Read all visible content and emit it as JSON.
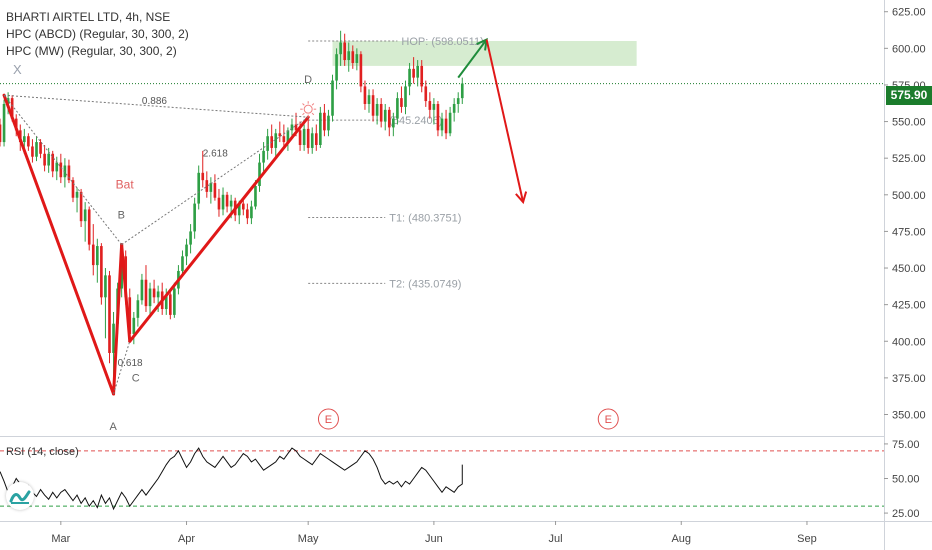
{
  "header": {
    "symbol_line": "BHARTI AIRTEL LTD, 4h, NSE",
    "indicator_1": "HPC (ABCD) (Regular, 30, 300, 2)",
    "indicator_2": "HPC (MW) (Regular, 30, 300, 2)",
    "hide_glyph": "X"
  },
  "colors": {
    "up": "#26a69a",
    "down": "#ef5350",
    "candle_up": "#2e9f45",
    "candle_down": "#e02020",
    "pattern": "#e01818",
    "dotted": "#777777",
    "target_zone": "#cfe9c8",
    "price_line": "#1b7c2c",
    "rsi_line": "#111111"
  },
  "price_tag": "575.90",
  "chart_data": [
    {
      "type": "candlestick",
      "title": "BHARTI AIRTEL LTD, 4h, NSE",
      "y_axis": {
        "ticks": [
          625,
          600,
          575,
          550,
          525,
          500,
          475,
          450,
          425,
          400,
          375,
          350
        ],
        "tick_labels": [
          "625.00",
          "600.00",
          "575.00",
          "550.00",
          "525.00",
          "500.00",
          "475.00",
          "450.00",
          "425.00",
          "400.00",
          "375.00",
          "350.00"
        ],
        "range": [
          336,
          633
        ]
      },
      "x_axis": {
        "ticks": [
          "Mar",
          "Apr",
          "May",
          "Jun",
          "Jul",
          "Aug",
          "Sep"
        ],
        "range": [
          "2020-02-15",
          "2020-09-20"
        ]
      },
      "last_price": 575.9,
      "candles": [
        [
          "2020-02-15",
          548,
          552,
          533,
          536
        ],
        [
          "2020-02-16",
          536,
          565,
          533,
          562
        ],
        [
          "2020-02-17",
          562,
          570,
          555,
          566
        ],
        [
          "2020-02-18",
          566,
          568,
          550,
          552
        ],
        [
          "2020-02-19",
          552,
          555,
          540,
          544
        ],
        [
          "2020-02-20",
          544,
          548,
          530,
          536
        ],
        [
          "2020-02-21",
          536,
          545,
          528,
          540
        ],
        [
          "2020-02-22",
          540,
          542,
          530,
          533
        ],
        [
          "2020-02-23",
          533,
          538,
          522,
          526
        ],
        [
          "2020-02-24",
          526,
          540,
          523,
          536
        ],
        [
          "2020-02-25",
          536,
          538,
          525,
          528
        ],
        [
          "2020-02-26",
          528,
          534,
          516,
          520
        ],
        [
          "2020-02-27",
          520,
          532,
          515,
          528
        ],
        [
          "2020-02-28",
          528,
          530,
          512,
          516
        ],
        [
          "2020-02-29",
          516,
          526,
          510,
          522
        ],
        [
          "2020-03-01",
          522,
          528,
          508,
          512
        ],
        [
          "2020-03-02",
          512,
          525,
          505,
          520
        ],
        [
          "2020-03-03",
          520,
          524,
          508,
          510
        ],
        [
          "2020-03-04",
          510,
          512,
          495,
          498
        ],
        [
          "2020-03-05",
          498,
          505,
          488,
          502
        ],
        [
          "2020-03-06",
          502,
          504,
          478,
          482
        ],
        [
          "2020-03-07",
          482,
          495,
          468,
          490
        ],
        [
          "2020-03-08",
          490,
          492,
          462,
          466
        ],
        [
          "2020-03-09",
          466,
          480,
          445,
          452
        ],
        [
          "2020-03-10",
          452,
          470,
          440,
          465
        ],
        [
          "2020-03-11",
          465,
          467,
          425,
          430
        ],
        [
          "2020-03-12",
          430,
          450,
          402,
          445
        ],
        [
          "2020-03-13",
          445,
          448,
          385,
          392
        ],
        [
          "2020-03-14",
          392,
          420,
          364,
          412
        ],
        [
          "2020-03-15",
          412,
          440,
          405,
          436
        ],
        [
          "2020-03-16",
          436,
          466,
          430,
          458
        ],
        [
          "2020-03-17",
          458,
          462,
          425,
          430
        ],
        [
          "2020-03-18",
          430,
          436,
          400,
          405
        ],
        [
          "2020-03-19",
          405,
          420,
          398,
          416
        ],
        [
          "2020-03-20",
          416,
          432,
          410,
          428
        ],
        [
          "2020-03-21",
          428,
          446,
          425,
          442
        ],
        [
          "2020-03-22",
          442,
          452,
          420,
          424
        ],
        [
          "2020-03-23",
          424,
          440,
          418,
          436
        ],
        [
          "2020-03-24",
          436,
          442,
          426,
          430
        ],
        [
          "2020-03-25",
          430,
          438,
          420,
          434
        ],
        [
          "2020-03-26",
          434,
          440,
          418,
          422
        ],
        [
          "2020-03-27",
          422,
          436,
          418,
          432
        ],
        [
          "2020-03-28",
          432,
          435,
          415,
          418
        ],
        [
          "2020-03-29",
          418,
          440,
          416,
          436
        ],
        [
          "2020-03-30",
          436,
          452,
          432,
          448
        ],
        [
          "2020-03-31",
          448,
          462,
          444,
          458
        ],
        [
          "2020-04-01",
          458,
          470,
          452,
          466
        ],
        [
          "2020-04-02",
          466,
          480,
          460,
          475
        ],
        [
          "2020-04-03",
          475,
          498,
          470,
          494
        ],
        [
          "2020-04-04",
          494,
          520,
          490,
          515
        ],
        [
          "2020-04-05",
          515,
          530,
          505,
          510
        ],
        [
          "2020-04-06",
          510,
          516,
          498,
          502
        ],
        [
          "2020-04-07",
          502,
          512,
          494,
          508
        ],
        [
          "2020-04-08",
          508,
          514,
          496,
          498
        ],
        [
          "2020-04-09",
          498,
          504,
          485,
          490
        ],
        [
          "2020-04-10",
          490,
          505,
          486,
          500
        ],
        [
          "2020-04-11",
          500,
          502,
          488,
          492
        ],
        [
          "2020-04-12",
          492,
          500,
          484,
          496
        ],
        [
          "2020-04-13",
          496,
          498,
          482,
          486
        ],
        [
          "2020-04-14",
          486,
          496,
          480,
          494
        ],
        [
          "2020-04-15",
          494,
          498,
          486,
          490
        ],
        [
          "2020-04-16",
          490,
          494,
          480,
          484
        ],
        [
          "2020-04-17",
          484,
          496,
          480,
          492
        ],
        [
          "2020-04-18",
          492,
          510,
          490,
          506
        ],
        [
          "2020-04-19",
          506,
          528,
          502,
          522
        ],
        [
          "2020-04-20",
          522,
          536,
          516,
          530
        ],
        [
          "2020-04-21",
          530,
          545,
          524,
          540
        ],
        [
          "2020-04-22",
          540,
          548,
          528,
          532
        ],
        [
          "2020-04-23",
          532,
          545,
          526,
          542
        ],
        [
          "2020-04-24",
          542,
          550,
          536,
          540
        ],
        [
          "2020-04-25",
          540,
          548,
          532,
          536
        ],
        [
          "2020-04-26",
          536,
          546,
          530,
          544
        ],
        [
          "2020-04-27",
          544,
          552,
          538,
          548
        ],
        [
          "2020-04-28",
          548,
          556,
          540,
          544
        ],
        [
          "2020-04-29",
          544,
          550,
          530,
          534
        ],
        [
          "2020-04-30",
          534,
          548,
          530,
          545
        ],
        [
          "2020-05-01",
          545,
          552,
          528,
          532
        ],
        [
          "2020-05-02",
          532,
          546,
          528,
          542
        ],
        [
          "2020-05-03",
          542,
          548,
          530,
          534
        ],
        [
          "2020-05-04",
          534,
          560,
          532,
          556
        ],
        [
          "2020-05-05",
          556,
          562,
          540,
          544
        ],
        [
          "2020-05-06",
          544,
          558,
          540,
          554
        ],
        [
          "2020-05-07",
          554,
          582,
          550,
          578
        ],
        [
          "2020-05-08",
          578,
          600,
          572,
          596
        ],
        [
          "2020-05-09",
          596,
          612,
          588,
          604
        ],
        [
          "2020-05-10",
          604,
          610,
          588,
          592
        ],
        [
          "2020-05-11",
          592,
          604,
          584,
          598
        ],
        [
          "2020-05-12",
          598,
          602,
          586,
          590
        ],
        [
          "2020-05-13",
          590,
          600,
          585,
          596
        ],
        [
          "2020-05-14",
          596,
          598,
          570,
          574
        ],
        [
          "2020-05-15",
          574,
          578,
          558,
          562
        ],
        [
          "2020-05-16",
          562,
          572,
          556,
          568
        ],
        [
          "2020-05-17",
          568,
          572,
          550,
          554
        ],
        [
          "2020-05-18",
          554,
          566,
          548,
          562
        ],
        [
          "2020-05-19",
          562,
          566,
          546,
          550
        ],
        [
          "2020-05-20",
          550,
          562,
          544,
          558
        ],
        [
          "2020-05-21",
          558,
          560,
          540,
          546
        ],
        [
          "2020-05-22",
          546,
          556,
          540,
          552
        ],
        [
          "2020-05-23",
          552,
          570,
          548,
          566
        ],
        [
          "2020-05-24",
          566,
          574,
          556,
          560
        ],
        [
          "2020-05-25",
          560,
          578,
          555,
          574
        ],
        [
          "2020-05-26",
          574,
          590,
          568,
          586
        ],
        [
          "2020-05-27",
          586,
          594,
          576,
          580
        ],
        [
          "2020-05-28",
          580,
          592,
          574,
          588
        ],
        [
          "2020-05-29",
          588,
          592,
          570,
          574
        ],
        [
          "2020-05-30",
          574,
          578,
          560,
          564
        ],
        [
          "2020-05-31",
          564,
          570,
          552,
          558
        ],
        [
          "2020-06-01",
          558,
          566,
          548,
          562
        ],
        [
          "2020-06-02",
          562,
          564,
          540,
          544
        ],
        [
          "2020-06-03",
          544,
          556,
          540,
          552
        ],
        [
          "2020-06-04",
          552,
          558,
          538,
          542
        ],
        [
          "2020-06-05",
          542,
          560,
          540,
          556
        ],
        [
          "2020-06-06",
          556,
          566,
          550,
          562
        ],
        [
          "2020-06-07",
          562,
          570,
          556,
          566
        ],
        [
          "2020-06-08",
          566,
          580,
          562,
          576
        ]
      ],
      "pattern": {
        "name": "Bat",
        "points": [
          {
            "label": "X",
            "date": "2020-02-16",
            "price": 568
          },
          {
            "label": "A",
            "date": "2020-03-14",
            "price": 364
          },
          {
            "label": "B",
            "date": "2020-03-16",
            "price": 466
          },
          {
            "label": "C",
            "date": "2020-03-18",
            "price": 400
          },
          {
            "label": "D",
            "date": "2020-05-01",
            "price": 553
          }
        ],
        "labels": {
          "X": "",
          "A": "A",
          "B": "B",
          "C": "C",
          "D": "D",
          "pattern": "Bat"
        },
        "ratios": [
          {
            "text": "0.886",
            "date": "2020-03-21",
            "price": 562
          },
          {
            "text": "0.618",
            "date": "2020-03-15",
            "price": 383
          },
          {
            "text": "2.618",
            "date": "2020-04-05",
            "price": 526
          }
        ],
        "levels": [
          {
            "text": "HOP: (598.0511)",
            "price": 605,
            "from": "2020-05-01",
            "to": "2020-05-23"
          },
          {
            "text": "(545.2406)",
            "price": 551,
            "from": "2020-05-01",
            "to": "2020-05-20"
          },
          {
            "text": "T1: (480.3751)",
            "price": 484.5,
            "from": "2020-05-01",
            "to": "2020-05-20"
          },
          {
            "text": "T2: (435.0749)",
            "price": 439.5,
            "from": "2020-05-01",
            "to": "2020-05-20"
          }
        ],
        "target_zone": {
          "from": "2020-05-07",
          "to": "2020-07-21",
          "low": 588,
          "high": 605
        }
      },
      "projection_arrows": [
        {
          "color": "green",
          "from": {
            "date": "2020-06-07",
            "price": 580
          },
          "to": {
            "date": "2020-06-14",
            "price": 606
          }
        },
        {
          "color": "red",
          "from": {
            "date": "2020-06-14",
            "price": 606
          },
          "to": {
            "date": "2020-06-23",
            "price": 495
          }
        }
      ],
      "event_markers": [
        {
          "label": "E",
          "date": "2020-05-06"
        },
        {
          "label": "E",
          "date": "2020-07-14"
        }
      ]
    },
    {
      "type": "line",
      "title": "RSI (14, close)",
      "y_axis": {
        "ticks": [
          75,
          50,
          25
        ],
        "tick_labels": [
          "75.00",
          "50.00",
          "25.00"
        ],
        "range": [
          20,
          80
        ]
      },
      "levels": [
        70,
        30
      ],
      "values": [
        55,
        48,
        40,
        44,
        50,
        46,
        42,
        45,
        40,
        37,
        42,
        38,
        35,
        40,
        36,
        40,
        42,
        38,
        34,
        38,
        32,
        36,
        30,
        34,
        29,
        38,
        32,
        36,
        28,
        34,
        40,
        36,
        30,
        34,
        38,
        42,
        38,
        42,
        46,
        50,
        55,
        60,
        64,
        66,
        70,
        64,
        58,
        62,
        68,
        72,
        66,
        62,
        60,
        58,
        62,
        66,
        62,
        58,
        60,
        64,
        68,
        66,
        62,
        64,
        60,
        56,
        58,
        60,
        62,
        66,
        64,
        68,
        72,
        70,
        66,
        64,
        62,
        60,
        64,
        68,
        66,
        64,
        62,
        60,
        58,
        56,
        58,
        60,
        62,
        66,
        70,
        68,
        64,
        58,
        50,
        46,
        48,
        46,
        48,
        44,
        48,
        46,
        50,
        54,
        58,
        56,
        52,
        48,
        44,
        40,
        44,
        42,
        40,
        44,
        46,
        52,
        56,
        60
      ]
    }
  ]
}
